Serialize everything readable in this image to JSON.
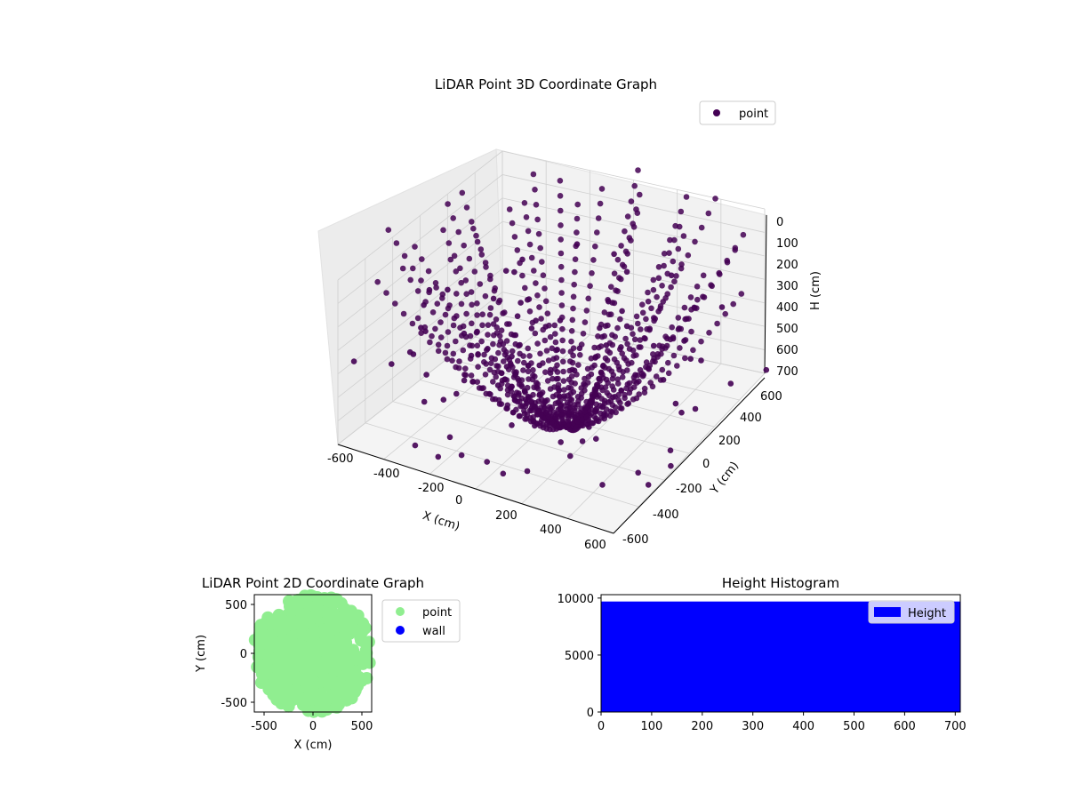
{
  "colors": {
    "point_3d": "#440154",
    "pane": "#f2f2f2",
    "grid": "#d0d0d0",
    "point_2d": "#90ee90",
    "wall_2d": "#0000ff",
    "histogram": "#0000ff"
  },
  "chart_data": [
    {
      "type": "scatter",
      "projection": "3d",
      "title": "LiDAR Point 3D Coordinate Graph",
      "xlabel": "X (cm)",
      "ylabel": "Y (cm)",
      "zlabel": "H (cm)",
      "xlim": [
        -600,
        600
      ],
      "ylim": [
        -600,
        600
      ],
      "zlim": [
        0,
        700
      ],
      "z_inverted": true,
      "x_ticks": [
        "-600",
        "-400",
        "-200",
        "0",
        "200",
        "400",
        "600"
      ],
      "y_ticks": [
        "-600",
        "-400",
        "-200",
        "0",
        "200",
        "400",
        "600"
      ],
      "z_ticks": [
        "0",
        "100",
        "200",
        "300",
        "400",
        "500",
        "600",
        "700"
      ],
      "grid": true,
      "legend": {
        "position": "top-right",
        "entries": [
          "point"
        ]
      },
      "series": [
        {
          "name": "point",
          "description_note": "dense radial arcs of points converging near X 0, Y 0 at H 0, plus scattered outliers",
          "points_sample": [
            {
              "x": -560,
              "y": -560,
              "h": 700
            },
            {
              "x": -400,
              "y": -400,
              "h": 500
            },
            {
              "x": -250,
              "y": -250,
              "h": 300
            },
            {
              "x": -100,
              "y": -100,
              "h": 120
            },
            {
              "x": 0,
              "y": 0,
              "h": 0
            },
            {
              "x": 200,
              "y": 300,
              "h": 150
            },
            {
              "x": 400,
              "y": 500,
              "h": 400
            },
            {
              "x": 560,
              "y": 580,
              "h": 650
            },
            {
              "x": 300,
              "y": -300,
              "h": 250
            },
            {
              "x": 500,
              "y": -500,
              "h": 550
            }
          ]
        }
      ]
    },
    {
      "type": "scatter",
      "title": "LiDAR Point 2D Coordinate Graph",
      "xlabel": "X (cm)",
      "ylabel": "Y (cm)",
      "xlim": [
        -600,
        600
      ],
      "ylim": [
        -600,
        600
      ],
      "x_ticks": [
        "-500",
        "0",
        "500"
      ],
      "y_ticks": [
        "-500",
        "0",
        "500"
      ],
      "legend": {
        "position": "outside-right",
        "entries": [
          "point",
          "wall"
        ]
      },
      "series": [
        {
          "name": "point",
          "region": "filled disc of points, radius about 600"
        },
        {
          "name": "wall",
          "values": []
        }
      ]
    },
    {
      "type": "bar",
      "title": "Height Histogram",
      "xlabel": "",
      "ylabel": "",
      "xlim": [
        0,
        710
      ],
      "ylim": [
        0,
        10300
      ],
      "x_ticks": [
        "0",
        "100",
        "200",
        "300",
        "400",
        "500",
        "600",
        "700"
      ],
      "y_ticks": [
        "0",
        "5000",
        "10000"
      ],
      "legend": {
        "position": "top-right",
        "entries": [
          "Height"
        ]
      },
      "series": [
        {
          "name": "Height",
          "bins": [
            [
              0,
              710
            ]
          ],
          "values": [
            9700
          ]
        }
      ]
    }
  ]
}
